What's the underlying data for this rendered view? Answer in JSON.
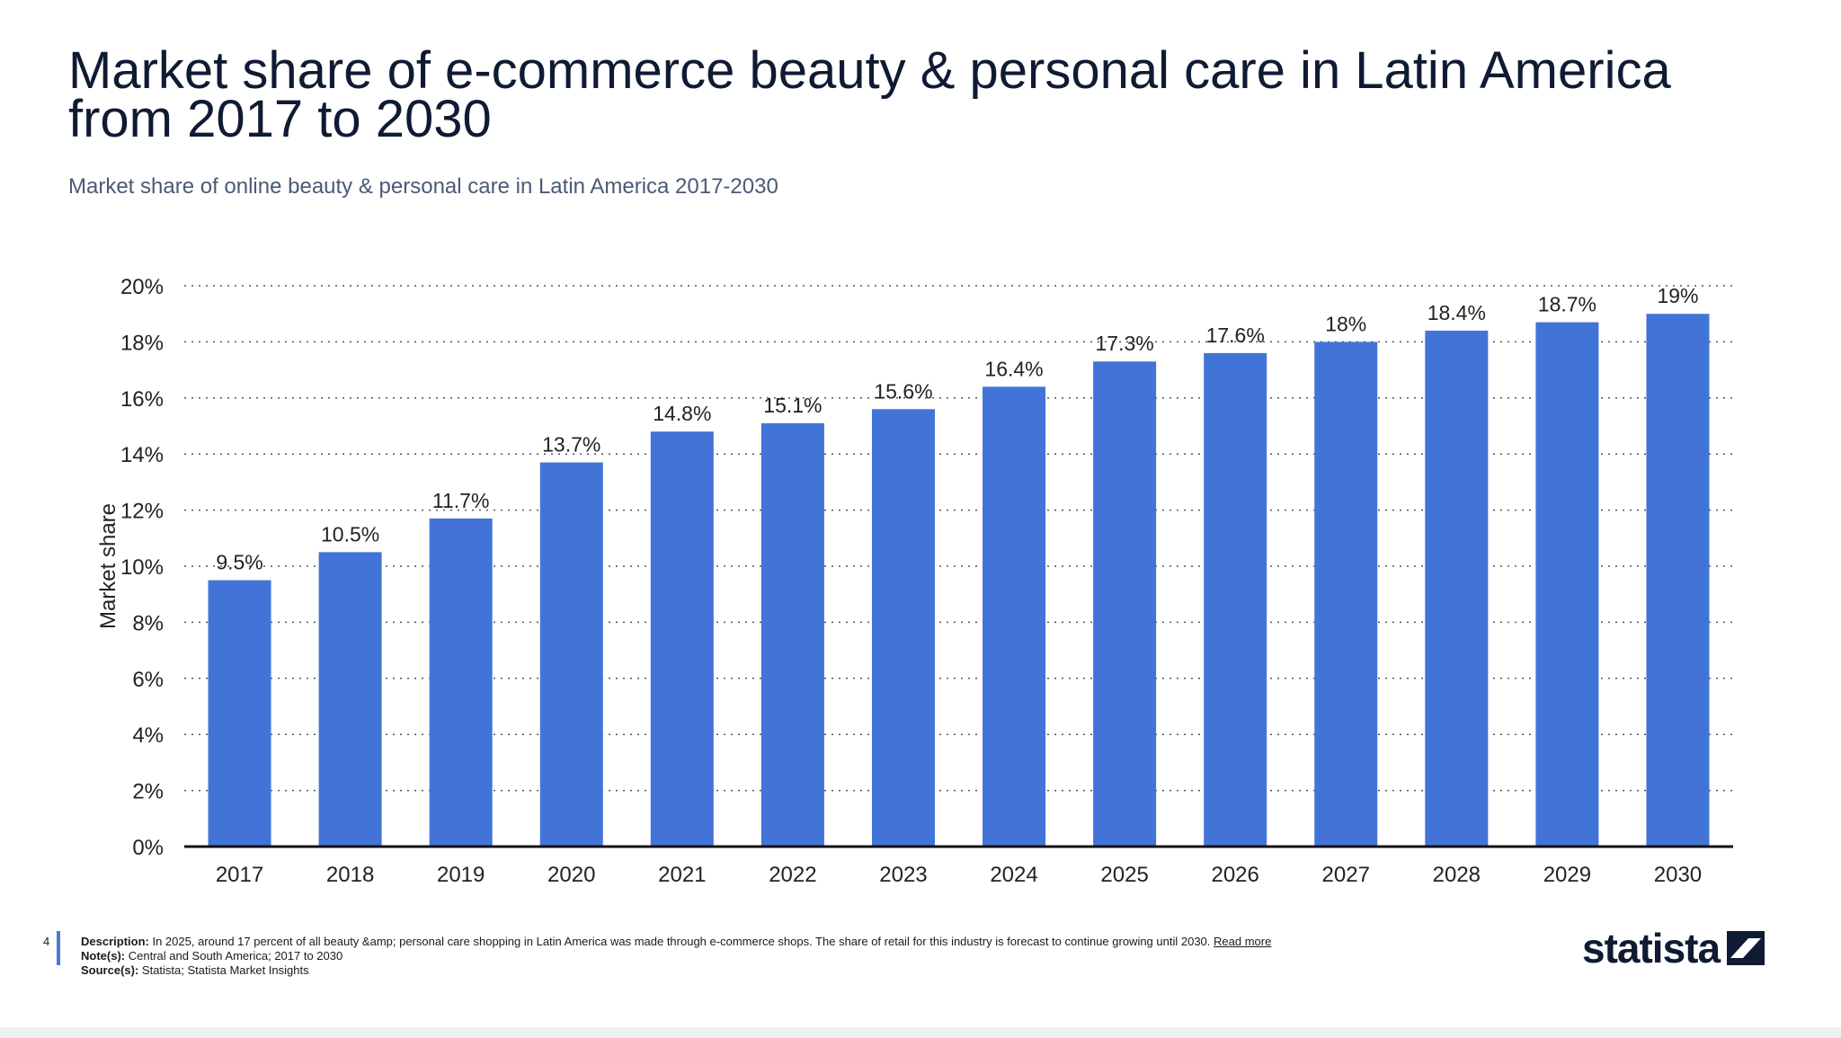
{
  "title": "Market share of e-commerce beauty & personal care in Latin America from 2017 to 2030",
  "subtitle": "Market share of online beauty & personal care in Latin America 2017-2030",
  "colors": {
    "bar": "#4274d8",
    "title": "#0f1b33",
    "grid": "#555555"
  },
  "chart_data": {
    "type": "bar",
    "categories": [
      "2017",
      "2018",
      "2019",
      "2020",
      "2021",
      "2022",
      "2023",
      "2024",
      "2025",
      "2026",
      "2027",
      "2028",
      "2029",
      "2030"
    ],
    "values": [
      9.5,
      10.5,
      11.7,
      13.7,
      14.8,
      15.1,
      15.6,
      16.4,
      17.3,
      17.6,
      18,
      18.4,
      18.7,
      19
    ],
    "data_labels": [
      "9.5%",
      "10.5%",
      "11.7%",
      "13.7%",
      "14.8%",
      "15.1%",
      "15.6%",
      "16.4%",
      "17.3%",
      "17.6%",
      "18%",
      "18.4%",
      "18.7%",
      "19%"
    ],
    "ylabel": "Market share",
    "xlabel": "",
    "ylim": [
      0,
      20
    ],
    "y_ticks": [
      0,
      2,
      4,
      6,
      8,
      10,
      12,
      14,
      16,
      18,
      20
    ],
    "y_tick_labels": [
      "0%",
      "2%",
      "4%",
      "6%",
      "8%",
      "10%",
      "12%",
      "14%",
      "16%",
      "18%",
      "20%"
    ],
    "grid": "dotted horizontal",
    "legend": "none"
  },
  "footer": {
    "page_number": "4",
    "description_label": "Description:",
    "description_text": "In 2025, around 17 percent of all beauty &amp; personal care shopping in Latin America was made through e-commerce shops. The share of retail for this industry is forecast to continue growing until 2030.",
    "read_more": "Read more",
    "notes_label": "Note(s):",
    "notes_text": "Central and South America; 2017 to 2030",
    "source_label": "Source(s):",
    "source_text": "Statista; Statista Market Insights"
  },
  "brand": {
    "name": "statista",
    "icon": "statista-logo-icon"
  }
}
